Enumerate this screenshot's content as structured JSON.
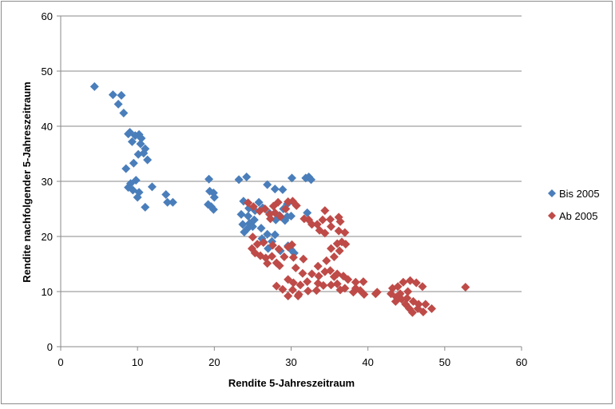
{
  "chart_data": {
    "type": "scatter",
    "title": "",
    "xlabel": "Rendite 5-Jahreszeitraum",
    "ylabel": "Rendite nachfolgender 5-Jahreszeitraum",
    "xlim": [
      0,
      60
    ],
    "ylim": [
      0,
      60
    ],
    "xticks": [
      0,
      10,
      20,
      30,
      40,
      50,
      60
    ],
    "yticks": [
      0,
      10,
      20,
      30,
      40,
      50,
      60
    ],
    "grid": "horizontal",
    "legend_position": "right",
    "series": [
      {
        "name": "Bis 2005",
        "color": "#4a7ebb",
        "marker": "diamond",
        "points": [
          [
            4.4,
            47.2
          ],
          [
            6.8,
            45.7
          ],
          [
            7.9,
            45.6
          ],
          [
            7.5,
            44.0
          ],
          [
            8.2,
            42.4
          ],
          [
            9.0,
            38.9
          ],
          [
            8.8,
            38.6
          ],
          [
            9.7,
            38.3
          ],
          [
            10.2,
            38.5
          ],
          [
            10.5,
            37.8
          ],
          [
            9.3,
            37.2
          ],
          [
            10.4,
            36.8
          ],
          [
            11.0,
            35.9
          ],
          [
            10.8,
            35.1
          ],
          [
            10.1,
            34.9
          ],
          [
            11.3,
            33.9
          ],
          [
            9.5,
            33.3
          ],
          [
            8.5,
            32.3
          ],
          [
            9.8,
            30.2
          ],
          [
            9.1,
            29.6
          ],
          [
            8.8,
            28.9
          ],
          [
            11.9,
            29.0
          ],
          [
            9.4,
            28.4
          ],
          [
            10.2,
            28.0
          ],
          [
            10.0,
            27.1
          ],
          [
            13.7,
            27.6
          ],
          [
            13.9,
            26.2
          ],
          [
            14.6,
            26.2
          ],
          [
            11.0,
            25.3
          ],
          [
            19.3,
            30.4
          ],
          [
            19.4,
            28.2
          ],
          [
            19.9,
            27.9
          ],
          [
            20.0,
            27.1
          ],
          [
            19.2,
            25.8
          ],
          [
            19.6,
            25.4
          ],
          [
            19.9,
            24.9
          ],
          [
            23.2,
            30.3
          ],
          [
            24.2,
            30.8
          ],
          [
            23.8,
            26.4
          ],
          [
            24.5,
            25.1
          ],
          [
            25.3,
            24.7
          ],
          [
            25.8,
            26.2
          ],
          [
            26.3,
            25.2
          ],
          [
            23.5,
            24.0
          ],
          [
            24.4,
            23.7
          ],
          [
            25.2,
            23.0
          ],
          [
            24.6,
            22.4
          ],
          [
            23.7,
            22.2
          ],
          [
            25.0,
            21.8
          ],
          [
            26.1,
            21.5
          ],
          [
            24.3,
            21.4
          ],
          [
            23.9,
            20.8
          ],
          [
            26.9,
            29.4
          ],
          [
            27.9,
            28.6
          ],
          [
            28.9,
            28.5
          ],
          [
            30.1,
            30.6
          ],
          [
            31.9,
            30.6
          ],
          [
            32.3,
            30.8
          ],
          [
            32.6,
            30.3
          ],
          [
            29.5,
            25.9
          ],
          [
            29.0,
            25.0
          ],
          [
            27.2,
            24.2
          ],
          [
            28.5,
            23.8
          ],
          [
            29.5,
            23.6
          ],
          [
            30.0,
            23.7
          ],
          [
            29.2,
            22.9
          ],
          [
            28.0,
            23.0
          ],
          [
            26.9,
            20.4
          ],
          [
            27.9,
            20.3
          ],
          [
            26.2,
            19.6
          ],
          [
            26.4,
            19.0
          ],
          [
            27.5,
            19.1
          ],
          [
            29.6,
            18.3
          ],
          [
            27.0,
            17.8
          ],
          [
            30.0,
            17.6
          ],
          [
            30.4,
            17.0
          ],
          [
            28.6,
            17.4
          ],
          [
            32.1,
            24.3
          ]
        ]
      },
      {
        "name": "Ab 2005",
        "color": "#be4b48",
        "marker": "diamond",
        "points": [
          [
            24.4,
            26.1
          ],
          [
            25.1,
            25.4
          ],
          [
            25.9,
            24.6
          ],
          [
            26.6,
            25.0
          ],
          [
            27.2,
            24.0
          ],
          [
            27.7,
            25.5
          ],
          [
            28.3,
            26.2
          ],
          [
            27.9,
            24.3
          ],
          [
            29.6,
            26.3
          ],
          [
            30.2,
            26.4
          ],
          [
            29.3,
            25.0
          ],
          [
            30.7,
            25.6
          ],
          [
            28.6,
            23.6
          ],
          [
            27.3,
            23.2
          ],
          [
            31.7,
            23.2
          ],
          [
            32.3,
            23.0
          ],
          [
            32.7,
            22.2
          ],
          [
            33.4,
            22.2
          ],
          [
            34.1,
            23.0
          ],
          [
            34.4,
            24.7
          ],
          [
            35.1,
            23.1
          ],
          [
            36.2,
            23.5
          ],
          [
            36.4,
            22.7
          ],
          [
            33.7,
            21.1
          ],
          [
            34.4,
            20.6
          ],
          [
            35.2,
            21.8
          ],
          [
            36.2,
            21.0
          ],
          [
            37.0,
            20.7
          ],
          [
            25.0,
            19.9
          ],
          [
            25.6,
            18.6
          ],
          [
            26.4,
            18.9
          ],
          [
            27.6,
            18.4
          ],
          [
            28.4,
            17.7
          ],
          [
            29.6,
            18.1
          ],
          [
            30.1,
            18.5
          ],
          [
            24.9,
            17.8
          ],
          [
            25.3,
            17.0
          ],
          [
            26.0,
            16.5
          ],
          [
            26.7,
            16.1
          ],
          [
            27.5,
            16.4
          ],
          [
            28.1,
            15.2
          ],
          [
            29.1,
            16.3
          ],
          [
            30.3,
            16.2
          ],
          [
            31.6,
            15.9
          ],
          [
            26.9,
            15.1
          ],
          [
            28.5,
            14.7
          ],
          [
            33.5,
            14.6
          ],
          [
            34.6,
            15.6
          ],
          [
            35.2,
            17.8
          ],
          [
            36.0,
            18.7
          ],
          [
            36.6,
            19.0
          ],
          [
            37.1,
            18.6
          ],
          [
            36.3,
            17.4
          ],
          [
            35.6,
            16.3
          ],
          [
            30.6,
            14.3
          ],
          [
            31.5,
            13.3
          ],
          [
            32.7,
            13.2
          ],
          [
            33.6,
            12.8
          ],
          [
            34.4,
            13.6
          ],
          [
            35.1,
            13.8
          ],
          [
            35.6,
            12.7
          ],
          [
            36.0,
            13.2
          ],
          [
            36.8,
            12.8
          ],
          [
            37.4,
            12.2
          ],
          [
            38.4,
            11.7
          ],
          [
            39.4,
            11.8
          ],
          [
            29.6,
            12.2
          ],
          [
            30.3,
            11.6
          ],
          [
            31.2,
            11.2
          ],
          [
            32.1,
            11.8
          ],
          [
            33.5,
            11.5
          ],
          [
            34.2,
            11.1
          ],
          [
            35.2,
            11.2
          ],
          [
            36.0,
            11.4
          ],
          [
            37.0,
            10.6
          ],
          [
            38.4,
            10.6
          ],
          [
            39.0,
            10.2
          ],
          [
            28.1,
            11.0
          ],
          [
            28.9,
            10.4
          ],
          [
            30.2,
            10.3
          ],
          [
            31.0,
            9.5
          ],
          [
            29.6,
            9.2
          ],
          [
            30.9,
            9.2
          ],
          [
            32.2,
            10.1
          ],
          [
            33.3,
            10.2
          ],
          [
            36.4,
            10.3
          ],
          [
            38.1,
            9.9
          ],
          [
            39.5,
            9.5
          ],
          [
            41.2,
            9.9
          ],
          [
            41.0,
            9.6
          ],
          [
            43.2,
            10.6
          ],
          [
            43.9,
            10.9
          ],
          [
            44.6,
            11.7
          ],
          [
            45.5,
            12.0
          ],
          [
            46.3,
            11.6
          ],
          [
            47.1,
            10.9
          ],
          [
            43.0,
            9.6
          ],
          [
            43.7,
            9.0
          ],
          [
            44.4,
            8.6
          ],
          [
            45.1,
            8.8
          ],
          [
            45.9,
            8.2
          ],
          [
            46.6,
            7.7
          ],
          [
            43.6,
            8.2
          ],
          [
            44.9,
            7.7
          ],
          [
            45.4,
            6.9
          ],
          [
            45.8,
            6.2
          ],
          [
            46.5,
            6.9
          ],
          [
            47.2,
            6.3
          ],
          [
            47.5,
            7.7
          ],
          [
            48.3,
            6.9
          ],
          [
            44.2,
            9.6
          ],
          [
            45.2,
            10.0
          ],
          [
            52.7,
            10.8
          ]
        ]
      }
    ]
  }
}
